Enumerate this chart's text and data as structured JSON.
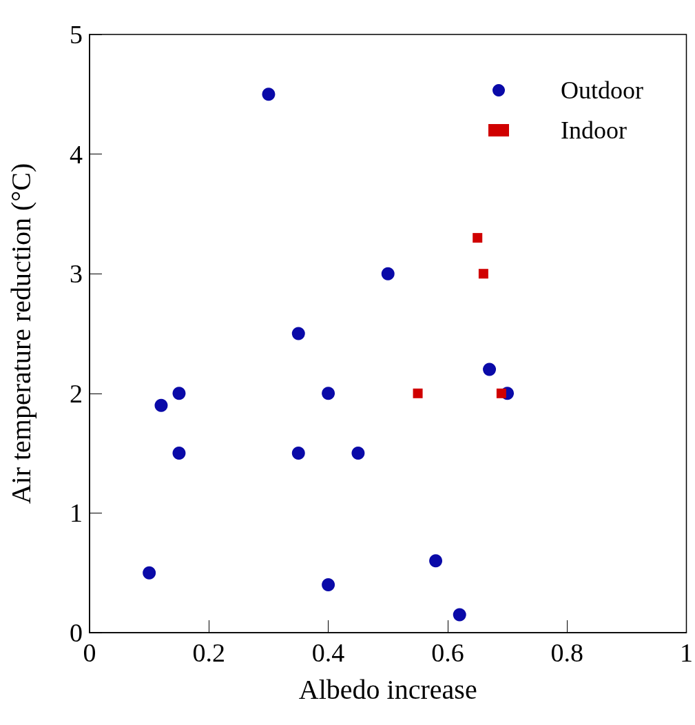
{
  "chart_data": {
    "type": "scatter",
    "xlabel": "Albedo increase",
    "ylabel": "Air temperature reduction (°C)",
    "xlim": [
      0,
      1
    ],
    "xticks": [
      0,
      0.2,
      0.4,
      0.6,
      0.8,
      1
    ],
    "ylim": [
      0,
      5
    ],
    "yticks": [
      0,
      1,
      2,
      3,
      4,
      5
    ],
    "grid": false,
    "legend": "top right",
    "series": [
      {
        "name": "Outdoor",
        "color": "#0a0aa8",
        "marker": "circle",
        "x": [
          0.1,
          0.12,
          0.15,
          0.15,
          0.3,
          0.35,
          0.35,
          0.4,
          0.4,
          0.45,
          0.5,
          0.58,
          0.62,
          0.67,
          0.7
        ],
        "values": [
          0.5,
          1.9,
          2.0,
          1.5,
          4.5,
          2.5,
          1.5,
          2.0,
          0.4,
          1.5,
          3.0,
          0.6,
          0.15,
          2.2,
          2.0
        ]
      },
      {
        "name": "Indoor",
        "color": "#d00000",
        "marker": "square",
        "x": [
          0.65,
          0.66,
          0.55,
          0.69
        ],
        "values": [
          3.3,
          3.0,
          2.0,
          2.0
        ]
      }
    ]
  }
}
